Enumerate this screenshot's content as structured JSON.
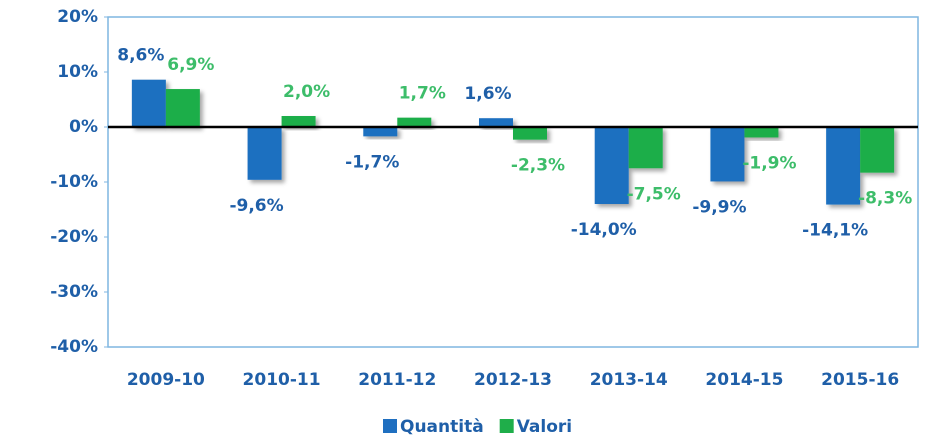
{
  "chart_data": {
    "type": "bar",
    "categories": [
      "2009-10",
      "2010-11",
      "2011-12",
      "2012-13",
      "2013-14",
      "2014-15",
      "2015-16"
    ],
    "series": [
      {
        "name": "Quantità",
        "color": "#1f6fc0",
        "label_color": "#1f5fa8",
        "values": [
          8.6,
          -9.6,
          -1.7,
          1.6,
          -14.0,
          -9.9,
          -14.1
        ],
        "value_labels": [
          "8,6%",
          "-9,6%",
          "-1,7%",
          "1,6%",
          "-14,0%",
          "-9,9%",
          "-14,1%"
        ]
      },
      {
        "name": "Valori",
        "color": "#1fae4a",
        "label_color": "#3dbd6a",
        "values": [
          6.9,
          2.0,
          1.7,
          -2.3,
          -7.5,
          -1.9,
          -8.3
        ],
        "value_labels": [
          "6,9%",
          "2,0%",
          "1,7%",
          "-2,3%",
          "-7,5%",
          "-1,9%",
          "-8,3%"
        ]
      }
    ],
    "ylim": [
      -40,
      20
    ],
    "yticks": [
      {
        "value": -40,
        "label": "-40%"
      },
      {
        "value": -30,
        "label": "-30%"
      },
      {
        "value": -20,
        "label": "-20%"
      },
      {
        "value": -10,
        "label": "-10%"
      },
      {
        "value": 0,
        "label": "0%"
      },
      {
        "value": 10,
        "label": "10%"
      },
      {
        "value": 20,
        "label": "20%"
      }
    ],
    "legend": "bottom"
  }
}
